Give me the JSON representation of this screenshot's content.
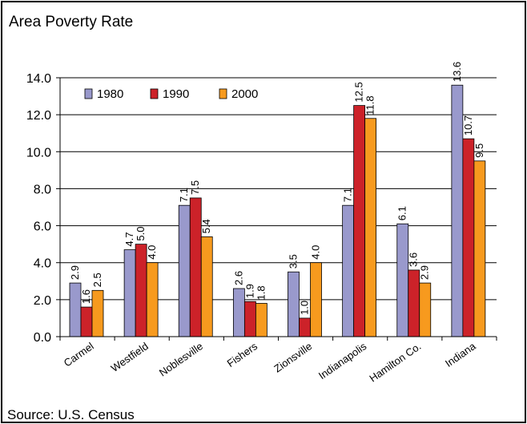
{
  "title": "Area Poverty Rate",
  "source": "Source: U.S. Census",
  "chart_data": {
    "type": "bar",
    "title": "Area Poverty Rate",
    "xlabel": "",
    "ylabel": "",
    "ylim": [
      0,
      14
    ],
    "yticks": [
      "0.0",
      "2.0",
      "4.0",
      "6.0",
      "8.0",
      "10.0",
      "12.0",
      "14.0"
    ],
    "grid": true,
    "legend": "top-left",
    "categories": [
      "Carmel",
      "Westfield",
      "Noblesville",
      "Fishers",
      "Zionsville",
      "Indianapolis",
      "Hamilton Co.",
      "Indiana"
    ],
    "series": [
      {
        "name": "1980",
        "color": "#9999cc",
        "values": [
          2.9,
          4.7,
          7.1,
          2.6,
          3.5,
          7.1,
          6.1,
          13.6
        ]
      },
      {
        "name": "1990",
        "color": "#cc2229",
        "values": [
          1.6,
          5.0,
          7.5,
          1.9,
          1.0,
          12.5,
          3.6,
          10.7
        ]
      },
      {
        "name": "2000",
        "color": "#f79a1e",
        "values": [
          2.5,
          4.0,
          5.4,
          1.8,
          4.0,
          11.8,
          2.9,
          9.5
        ]
      }
    ],
    "data_labels": [
      [
        "2.9",
        "4.7",
        "7.1",
        "2.6",
        "3.5",
        "7.1",
        "6.1",
        "13.6"
      ],
      [
        "1.6",
        "5.0",
        "7.5",
        "1.9",
        "1.0",
        "12.5",
        "3.6",
        "10.7"
      ],
      [
        "2.5",
        "4.0",
        "5.4",
        "1.8",
        "4.0",
        "11.8",
        "2.9",
        "9.5"
      ]
    ]
  }
}
